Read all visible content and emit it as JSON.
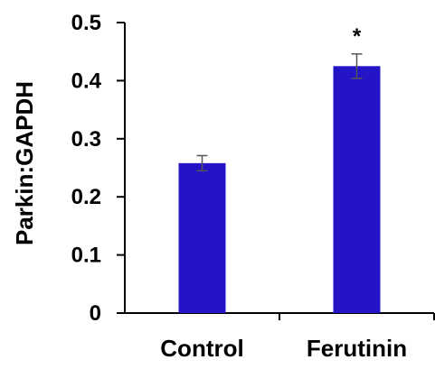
{
  "chart_data": {
    "type": "bar",
    "title": "",
    "xlabel": "",
    "ylabel": "Parkin:GAPDH",
    "ylim": [
      0,
      0.5
    ],
    "yticks": [
      "0",
      "0.1",
      "0.2",
      "0.3",
      "0.4",
      "0.5"
    ],
    "categories": [
      "Control",
      "Ferutinin"
    ],
    "values": [
      0.258,
      0.425
    ],
    "errors": [
      0.013,
      0.021
    ],
    "annotations": [
      "",
      "*"
    ],
    "bar_color": "#2414C8",
    "error_color": "#555555",
    "grid": false,
    "legend": "none"
  }
}
